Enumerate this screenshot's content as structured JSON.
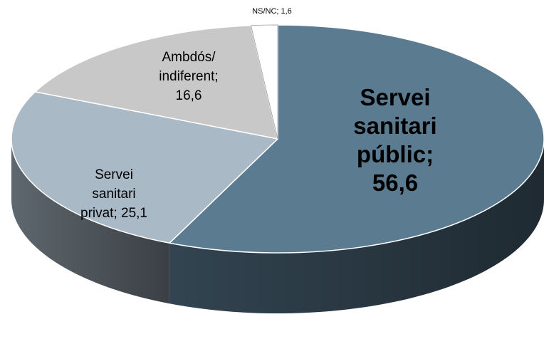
{
  "chart_data": {
    "type": "pie",
    "title": "",
    "slices": [
      {
        "label_lines": [
          "Servei",
          "sanitari",
          "públic;",
          "56,6"
        ],
        "value": 56.6,
        "color": "#5b7b91"
      },
      {
        "label_lines": [
          "Servei",
          "sanitari",
          "privat;  25,1"
        ],
        "value": 25.1,
        "color": "#a9b9c6"
      },
      {
        "label_lines": [
          "Ambdós/",
          "indiferent;",
          "16,6"
        ],
        "value": 16.6,
        "color": "#c8c8c8"
      },
      {
        "label_lines": [
          "NS/NC; 1,6"
        ],
        "value": 1.6,
        "color": "#ffffff"
      }
    ]
  }
}
